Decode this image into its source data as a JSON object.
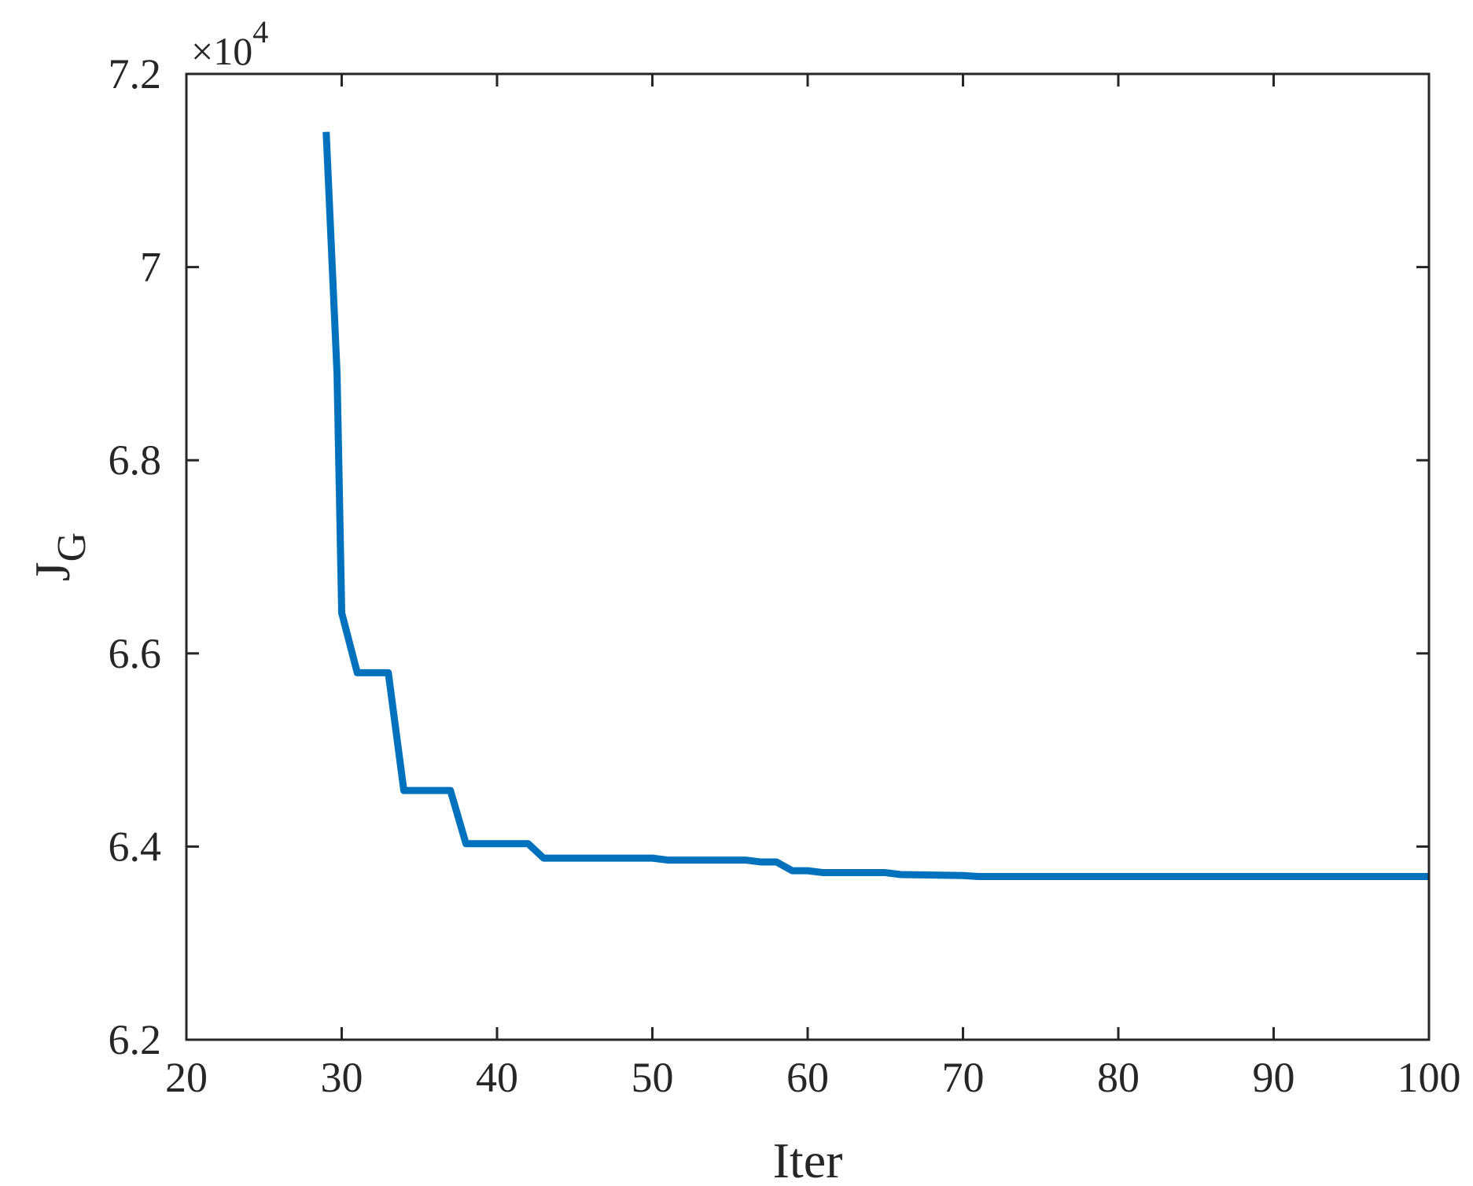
{
  "chart_data": {
    "type": "line",
    "title": "",
    "xlabel": "Iter",
    "ylabel_main": "J",
    "ylabel_sub": "G",
    "y_exponent_base": "×10",
    "y_exponent_power": "4",
    "xlim": [
      20,
      100
    ],
    "ylim": [
      6.2,
      7.2
    ],
    "x_ticks": [
      20,
      30,
      40,
      50,
      60,
      70,
      80,
      90,
      100
    ],
    "y_ticks": [
      6.2,
      6.4,
      6.6,
      6.8,
      7.0,
      7.2
    ],
    "x_tick_labels": [
      "20",
      "30",
      "40",
      "50",
      "60",
      "70",
      "80",
      "90",
      "100"
    ],
    "y_tick_labels": [
      "6.2",
      "6.4",
      "6.6",
      "6.8",
      "7",
      "7.2"
    ],
    "grid": false,
    "series": [
      {
        "color": "#0072BD",
        "x": [
          29,
          29.7,
          30,
          31,
          33,
          34,
          37,
          38,
          42,
          43,
          50,
          51,
          56,
          57,
          58,
          59,
          60,
          61,
          65,
          66,
          70,
          71,
          80,
          100
        ],
        "y": [
          7.14,
          6.89,
          6.642,
          6.58,
          6.58,
          6.458,
          6.458,
          6.403,
          6.403,
          6.388,
          6.388,
          6.386,
          6.386,
          6.384,
          6.384,
          6.375,
          6.375,
          6.373,
          6.373,
          6.371,
          6.37,
          6.369,
          6.369,
          6.369
        ]
      }
    ]
  }
}
